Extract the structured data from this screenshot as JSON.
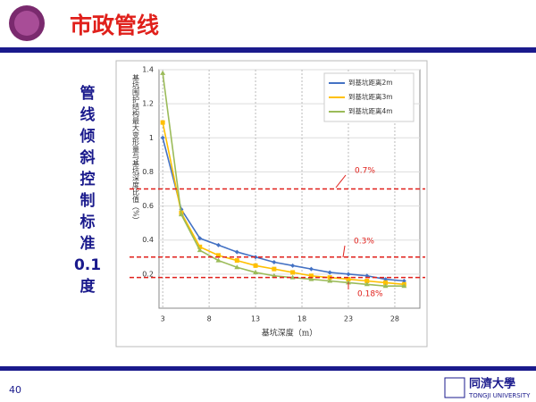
{
  "slide": {
    "title": "市政管线",
    "side_text": [
      "管",
      "线",
      "倾",
      "斜",
      "控",
      "制",
      "标",
      "准",
      "0.1",
      "度"
    ],
    "page_number": "40",
    "logo_cn": "同濟大學",
    "logo_en": "TONGJI UNIVERSITY"
  },
  "chart_data": {
    "type": "line",
    "y_label": "基坑围护结构最大变形量与基坑深度比值（%）",
    "x_label": "基坑深度（m）",
    "x": [
      3,
      5,
      7,
      9,
      11,
      13,
      15,
      17,
      19,
      21,
      23,
      25,
      27,
      29
    ],
    "series": [
      {
        "name": "到基坑距离2m",
        "color": "#4472c4",
        "values": [
          1.0,
          0.58,
          0.41,
          0.37,
          0.33,
          0.3,
          0.27,
          0.25,
          0.23,
          0.21,
          0.2,
          0.19,
          0.17,
          0.16
        ]
      },
      {
        "name": "到基坑距离3m",
        "color": "#ffc000",
        "values": [
          1.09,
          0.56,
          0.36,
          0.31,
          0.28,
          0.25,
          0.23,
          0.21,
          0.19,
          0.18,
          0.17,
          0.16,
          0.15,
          0.14
        ]
      },
      {
        "name": "到基坑距离4m",
        "color": "#9bbb59",
        "values": [
          1.38,
          0.55,
          0.34,
          0.28,
          0.24,
          0.21,
          0.19,
          0.18,
          0.17,
          0.16,
          0.15,
          0.14,
          0.13,
          0.13
        ]
      }
    ],
    "xlim": [
      2.6,
      30.7
    ],
    "ylim": [
      0,
      1.4
    ],
    "xticks": [
      3,
      8,
      13,
      18,
      23,
      28
    ],
    "yticks": [
      0.2,
      0.4,
      0.6,
      0.8,
      1,
      1.2,
      1.4
    ],
    "grid": true,
    "legend": "top-right",
    "reference_lines": [
      {
        "value": 0.7,
        "label": "0.7%"
      },
      {
        "value": 0.3,
        "label": "0.3%"
      },
      {
        "value": 0.18,
        "label": "0.18%"
      }
    ],
    "reference_color": "#e0201b"
  }
}
